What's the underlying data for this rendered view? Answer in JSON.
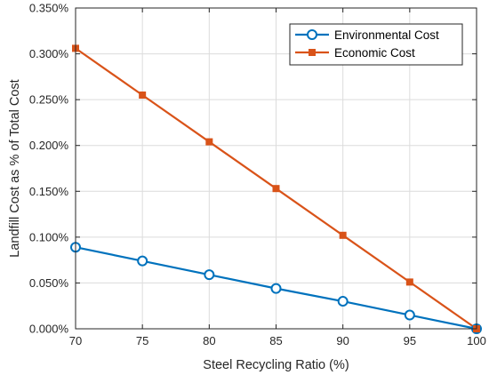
{
  "chart_data": {
    "type": "line",
    "xlabel": "Steel Recycling Ratio (%)",
    "ylabel": "Landfill Cost as % of Total Cost",
    "x": [
      70,
      75,
      80,
      85,
      90,
      95,
      100
    ],
    "xlim": [
      70,
      100
    ],
    "ylim": [
      0,
      0.35
    ],
    "x_ticks": [
      "70",
      "75",
      "80",
      "85",
      "90",
      "95",
      "100"
    ],
    "y_ticks": [
      "0.000%",
      "0.050%",
      "0.100%",
      "0.150%",
      "0.200%",
      "0.250%",
      "0.300%",
      "0.350%"
    ],
    "grid": true,
    "legend_position": "top-right",
    "series": [
      {
        "name": "Environmental Cost",
        "color": "#0072BD",
        "marker": "circle",
        "values": [
          0.089,
          0.074,
          0.059,
          0.044,
          0.03,
          0.015,
          0.0
        ]
      },
      {
        "name": "Economic Cost",
        "color": "#D95319",
        "marker": "square",
        "values": [
          0.306,
          0.255,
          0.204,
          0.153,
          0.102,
          0.051,
          0.0
        ]
      }
    ]
  }
}
